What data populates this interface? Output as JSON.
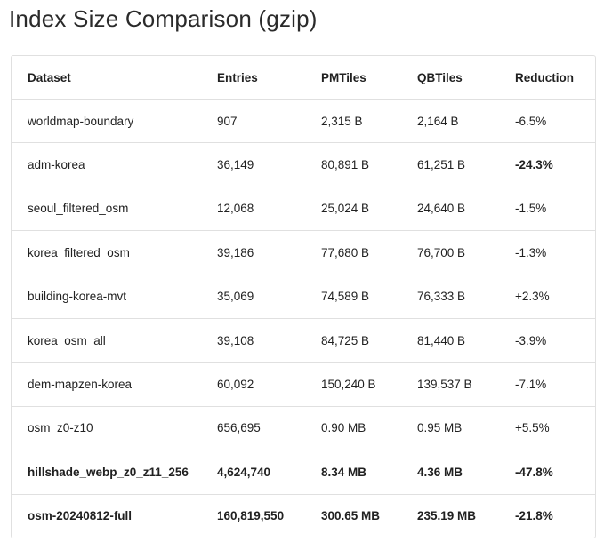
{
  "page": {
    "title": "Index Size Comparison (gzip)"
  },
  "table": {
    "columns": [
      {
        "key": "dataset",
        "label": "Dataset"
      },
      {
        "key": "entries",
        "label": "Entries"
      },
      {
        "key": "pmtiles",
        "label": "PMTiles"
      },
      {
        "key": "qbtiles",
        "label": "QBTiles"
      },
      {
        "key": "reduction",
        "label": "Reduction"
      }
    ],
    "rows": [
      {
        "dataset": "worldmap-boundary",
        "entries": "907",
        "pmtiles": "2,315 B",
        "qbtiles": "2,164 B",
        "reduction": "-6.5%",
        "row_bold": false,
        "reduction_bold": false
      },
      {
        "dataset": "adm-korea",
        "entries": "36,149",
        "pmtiles": "80,891 B",
        "qbtiles": "61,251 B",
        "reduction": "-24.3%",
        "row_bold": false,
        "reduction_bold": true
      },
      {
        "dataset": "seoul_filtered_osm",
        "entries": "12,068",
        "pmtiles": "25,024 B",
        "qbtiles": "24,640 B",
        "reduction": "-1.5%",
        "row_bold": false,
        "reduction_bold": false
      },
      {
        "dataset": "korea_filtered_osm",
        "entries": "39,186",
        "pmtiles": "77,680 B",
        "qbtiles": "76,700 B",
        "reduction": "-1.3%",
        "row_bold": false,
        "reduction_bold": false
      },
      {
        "dataset": "building-korea-mvt",
        "entries": "35,069",
        "pmtiles": "74,589 B",
        "qbtiles": "76,333 B",
        "reduction": "+2.3%",
        "row_bold": false,
        "reduction_bold": false
      },
      {
        "dataset": "korea_osm_all",
        "entries": "39,108",
        "pmtiles": "84,725 B",
        "qbtiles": "81,440 B",
        "reduction": "-3.9%",
        "row_bold": false,
        "reduction_bold": false
      },
      {
        "dataset": "dem-mapzen-korea",
        "entries": "60,092",
        "pmtiles": "150,240 B",
        "qbtiles": "139,537 B",
        "reduction": "-7.1%",
        "row_bold": false,
        "reduction_bold": false
      },
      {
        "dataset": "osm_z0-z10",
        "entries": "656,695",
        "pmtiles": "0.90 MB",
        "qbtiles": "0.95 MB",
        "reduction": "+5.5%",
        "row_bold": false,
        "reduction_bold": false
      },
      {
        "dataset": "hillshade_webp_z0_z11_256",
        "entries": "4,624,740",
        "pmtiles": "8.34 MB",
        "qbtiles": "4.36 MB",
        "reduction": "-47.8%",
        "row_bold": true,
        "reduction_bold": true
      },
      {
        "dataset": "osm-20240812-full",
        "entries": "160,819,550",
        "pmtiles": "300.65 MB",
        "qbtiles": "235.19 MB",
        "reduction": "-21.8%",
        "row_bold": true,
        "reduction_bold": true
      }
    ]
  },
  "colors": {
    "text": "#212121",
    "border": "#e0e0e0",
    "background": "#ffffff"
  }
}
